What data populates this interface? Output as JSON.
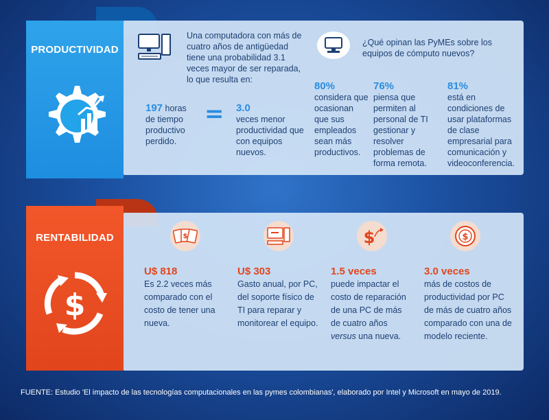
{
  "productividad": {
    "title": "PRODUCTIVIDAD",
    "intro": "Una computadora con más de cuatro años de antigüedad tiene una probabilidad 3.1 veces mayor de ser reparada, lo que resulta en:",
    "hours_value": "197",
    "hours_text": " horas de tiempo productivo perdido.",
    "equals": "=",
    "prod_value": "3.0",
    "prod_text": "veces menor productividad que con equipos nuevos.",
    "question": "¿Qué opinan las PyMEs sobre los equipos de cómputo nuevos?",
    "stats": [
      {
        "value": "80%",
        "text": "considera que ocasionan que sus empleados sean más productivos."
      },
      {
        "value": "76%",
        "text": "piensa que permiten al personal de TI gestionar y resolver problemas de forma remota."
      },
      {
        "value": "81%",
        "text": "está en condiciones de usar plataformas de clase empresarial para comunicación y videoconferencia."
      }
    ]
  },
  "rentabilidad": {
    "title": "RENTABILIDAD",
    "items": [
      {
        "value": "U$ 818",
        "text": "Es 2.2 veces más comparado con el costo de tener una nueva."
      },
      {
        "value": "U$ 303",
        "text": "Gasto anual, por PC, del soporte físico de TI para reparar y monitorear el equipo."
      },
      {
        "value": "1.5 veces",
        "text_a": "puede impactar el costo de reparación de una PC de más de cuatro años ",
        "text_em": "versus",
        "text_b": " una nueva."
      },
      {
        "value": "3.0 veces",
        "text": "más de costos de productividad por PC de más de cuatro años comparado con una de modelo reciente."
      }
    ]
  },
  "source": "FUENTE: Estudio 'El impacto de las tecnologías computacionales en las pymes colombianas', elaborado por Intel y Microsoft en mayo de 2019.",
  "colors": {
    "blue_accent": "#2a8de0",
    "orange_accent": "#e2451c",
    "text": "#1d3f73"
  }
}
